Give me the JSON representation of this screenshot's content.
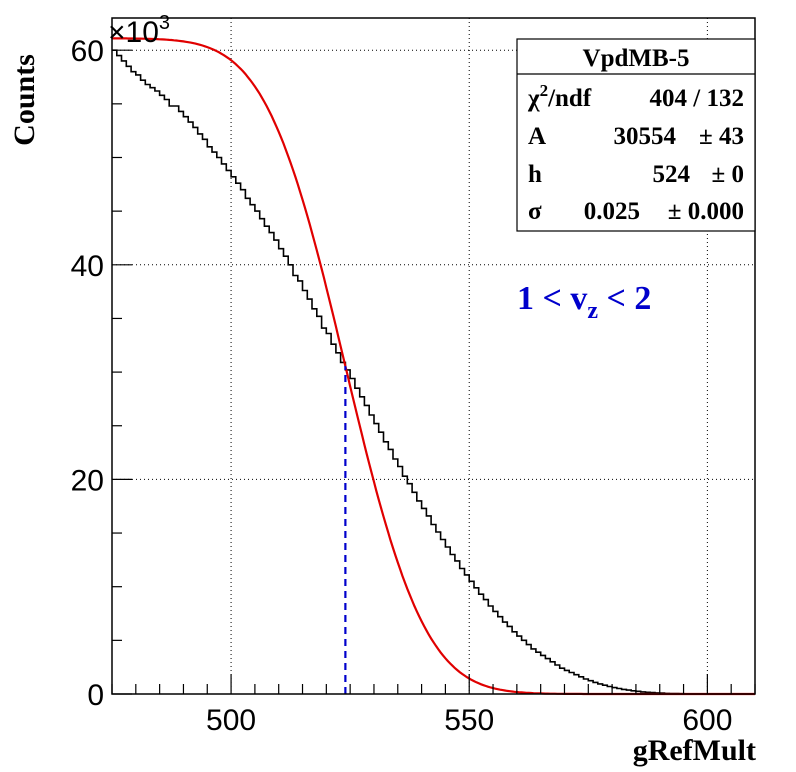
{
  "chart_data": {
    "type": "line",
    "xlabel": "gRefMult",
    "ylabel": "Counts",
    "exponent_label": "×10",
    "exponent_power": "3",
    "xlim": [
      475,
      610
    ],
    "ylim": [
      0,
      63
    ],
    "x_ticks": [
      500,
      550,
      600
    ],
    "y_ticks": [
      0,
      20,
      40,
      60
    ],
    "grid": true,
    "legend": {
      "title": "VpdMB-5",
      "rows": [
        {
          "sym": "χ",
          "sup": "2",
          "name_rest": "/ndf",
          "value": "404 / 132"
        },
        {
          "name": "A",
          "value": "30554",
          "error": "± 43"
        },
        {
          "name": "h",
          "value": "524",
          "error": "± 0"
        },
        {
          "name": "σ",
          "value": "0.025",
          "error": "± 0.000"
        }
      ]
    },
    "annotation": {
      "pre": "1 < v",
      "sub": "z",
      "post": " < 2"
    },
    "fit": {
      "A": 30554,
      "h": 524,
      "sigma": 0.025,
      "color": "#e00000"
    },
    "marker_line_x": 524,
    "marker_color": "#0000cc",
    "histogram": {
      "x_start": 475,
      "bin_width": 1,
      "values": [
        60.0,
        59.5,
        59.0,
        58.5,
        58.0,
        57.7,
        57.2,
        56.8,
        56.5,
        56.2,
        55.8,
        55.4,
        54.8,
        54.8,
        54.3,
        53.8,
        53.3,
        52.8,
        52.2,
        51.7,
        51.0,
        50.5,
        50.0,
        49.4,
        48.8,
        48.2,
        47.6,
        47.0,
        46.2,
        45.6,
        45.0,
        44.3,
        43.6,
        43.0,
        42.3,
        41.5,
        40.8,
        40.0,
        39.0,
        38.5,
        37.6,
        36.8,
        35.9,
        35.2,
        34.1,
        33.6,
        32.6,
        31.8,
        30.9,
        30.2,
        29.4,
        28.5,
        27.7,
        26.9,
        26.0,
        25.2,
        24.4,
        23.5,
        22.8,
        21.9,
        21.2,
        20.3,
        19.6,
        18.8,
        18.0,
        17.3,
        16.6,
        15.8,
        15.1,
        14.4,
        13.7,
        13.0,
        12.4,
        11.7,
        11.1,
        10.5,
        9.9,
        9.3,
        8.8,
        8.2,
        7.7,
        7.2,
        6.7,
        6.3,
        5.8,
        5.4,
        5.0,
        4.6,
        4.2,
        3.9,
        3.6,
        3.3,
        3.0,
        2.7,
        2.4,
        2.2,
        2.0,
        1.8,
        1.6,
        1.4,
        1.24,
        1.08,
        0.94,
        0.82,
        0.7,
        0.6,
        0.51,
        0.43,
        0.36,
        0.3,
        0.25,
        0.2,
        0.16,
        0.13,
        0.1,
        0.08,
        0.06,
        0.05,
        0.04,
        0.03,
        0.02,
        0.02,
        0.01,
        0.01,
        0.01,
        0.0,
        0.0,
        0.0,
        0.0,
        0.0,
        0.0,
        0.0,
        0.0,
        0.0,
        0.0
      ]
    },
    "colors": {
      "histogram": "#000000",
      "grid": "#000000",
      "frame": "#000000"
    }
  }
}
